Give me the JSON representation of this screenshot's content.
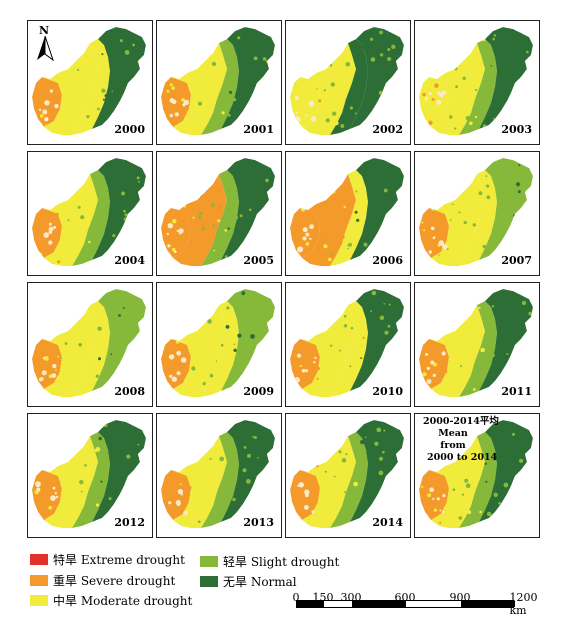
{
  "panels": [
    {
      "year": "2000",
      "pattern": "p2000"
    },
    {
      "year": "2001",
      "pattern": "p2001"
    },
    {
      "year": "2002",
      "pattern": "p2002"
    },
    {
      "year": "2003",
      "pattern": "p2003"
    },
    {
      "year": "2004",
      "pattern": "p2004"
    },
    {
      "year": "2005",
      "pattern": "p2005"
    },
    {
      "year": "2006",
      "pattern": "p2006"
    },
    {
      "year": "2007",
      "pattern": "p2007"
    },
    {
      "year": "2008",
      "pattern": "p2008"
    },
    {
      "year": "2009",
      "pattern": "p2009"
    },
    {
      "year": "2010",
      "pattern": "p2010"
    },
    {
      "year": "2011",
      "pattern": "p2011"
    },
    {
      "year": "2012",
      "pattern": "p2012"
    },
    {
      "year": "2013",
      "pattern": "p2013"
    },
    {
      "year": "2014",
      "pattern": "p2014"
    }
  ],
  "mean_panel": {
    "line1": "2000-2014平均",
    "line2": "Mean from",
    "line3": "2000 to 2014"
  },
  "north_label": "N",
  "legend": {
    "extreme": "特旱 Extreme drought",
    "severe": "重旱 Severe drought",
    "moderate": "中旱 Moderate drought",
    "slight": "轻旱 Slight drought",
    "normal": "无旱 Normal"
  },
  "colors": {
    "extreme": "#e2302a",
    "severe": "#f39a2b",
    "moderate": "#f1ec3c",
    "slight": "#86b83a",
    "normal": "#2c6e35"
  },
  "scale": {
    "ticks": [
      "0",
      "150",
      "300",
      "600",
      "900",
      "1200 km"
    ],
    "values": [
      0,
      150,
      300,
      600,
      900,
      1200
    ]
  }
}
